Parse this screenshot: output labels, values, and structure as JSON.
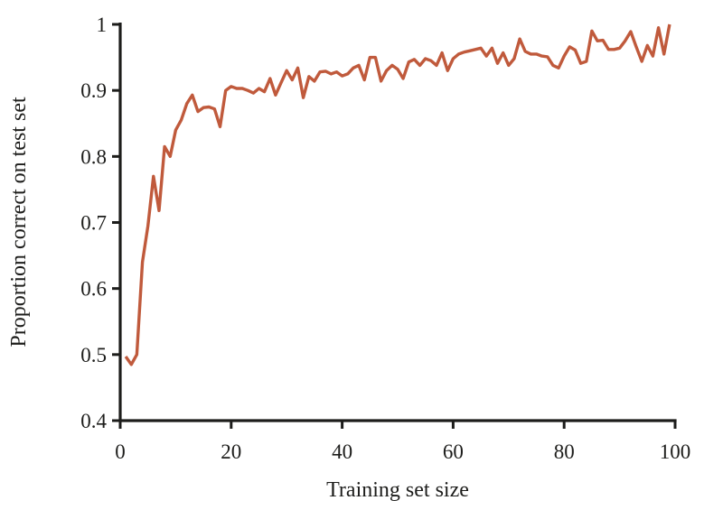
{
  "figure": {
    "background": "#ffffff",
    "axis_color": "#1d1d1b",
    "text_color": "#1d1d1b",
    "line_color": "#c05a3c"
  },
  "chart_data": {
    "type": "line",
    "title": "",
    "xlabel": "Training set size",
    "ylabel": "Proportion correct on test set",
    "xlim": [
      0,
      100
    ],
    "ylim": [
      0.4,
      1.0
    ],
    "x_ticks": [
      0,
      20,
      40,
      60,
      80,
      100
    ],
    "x_tick_labels": [
      "0",
      "20",
      "40",
      "60",
      "80",
      "100"
    ],
    "y_ticks": [
      0.4,
      0.5,
      0.6,
      0.7,
      0.8,
      0.9,
      1.0
    ],
    "y_tick_labels": [
      "0.4",
      "0.5",
      "0.6",
      "0.7",
      "0.8",
      "0.9",
      "1"
    ],
    "grid": false,
    "legend": "none",
    "series": [
      {
        "name": "proportion correct on test set",
        "color": "#c05a3c",
        "x": [
          1,
          2,
          3,
          4,
          5,
          6,
          7,
          8,
          9,
          10,
          11,
          12,
          13,
          14,
          15,
          16,
          17,
          18,
          19,
          20,
          21,
          22,
          23,
          24,
          25,
          26,
          27,
          28,
          29,
          30,
          31,
          32,
          33,
          34,
          35,
          36,
          37,
          38,
          39,
          40,
          41,
          42,
          43,
          44,
          45,
          46,
          47,
          48,
          49,
          50,
          51,
          52,
          53,
          54,
          55,
          56,
          57,
          58,
          59,
          60,
          61,
          62,
          63,
          64,
          65,
          66,
          67,
          68,
          69,
          70,
          71,
          72,
          73,
          74,
          75,
          76,
          77,
          78,
          79,
          80,
          81,
          82,
          83,
          84,
          85,
          86,
          87,
          88,
          89,
          90,
          91,
          92,
          93,
          94,
          95,
          96,
          97,
          98,
          99
        ],
        "values": [
          0.497,
          0.485,
          0.5,
          0.64,
          0.695,
          0.77,
          0.718,
          0.815,
          0.8,
          0.84,
          0.855,
          0.88,
          0.893,
          0.868,
          0.874,
          0.875,
          0.872,
          0.845,
          0.9,
          0.906,
          0.903,
          0.903,
          0.9,
          0.896,
          0.903,
          0.898,
          0.918,
          0.893,
          0.912,
          0.93,
          0.916,
          0.934,
          0.889,
          0.921,
          0.914,
          0.928,
          0.929,
          0.925,
          0.928,
          0.922,
          0.925,
          0.934,
          0.938,
          0.916,
          0.95,
          0.95,
          0.914,
          0.93,
          0.938,
          0.932,
          0.918,
          0.943,
          0.947,
          0.938,
          0.948,
          0.945,
          0.938,
          0.957,
          0.93,
          0.948,
          0.955,
          0.958,
          0.96,
          0.962,
          0.964,
          0.952,
          0.964,
          0.941,
          0.957,
          0.938,
          0.948,
          0.978,
          0.959,
          0.955,
          0.955,
          0.952,
          0.951,
          0.938,
          0.934,
          0.952,
          0.966,
          0.961,
          0.941,
          0.944,
          0.99,
          0.975,
          0.976,
          0.962,
          0.962,
          0.964,
          0.975,
          0.989,
          0.966,
          0.944,
          0.968,
          0.952,
          0.995,
          0.955,
          1.0
        ]
      }
    ]
  }
}
